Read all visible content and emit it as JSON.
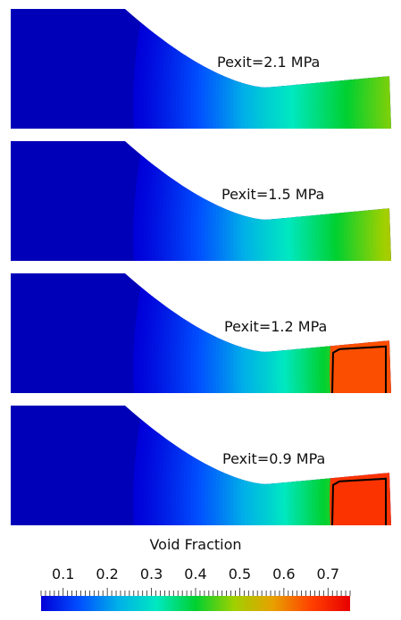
{
  "panels": [
    {
      "label": "Pexit=2.1 MPa",
      "max_void": 0.47,
      "shock": false
    },
    {
      "label": "Pexit=1.5 MPa",
      "max_void": 0.5,
      "shock": false
    },
    {
      "label": "Pexit=1.2 MPa",
      "max_void": 0.65,
      "shock": true
    },
    {
      "label": "Pexit=0.9 MPa",
      "max_void": 0.68,
      "shock": true
    }
  ],
  "legend": {
    "title": "Void Fraction",
    "min": 0.05,
    "max": 0.75,
    "tick_labels": [
      "0.1",
      "0.2",
      "0.3",
      "0.4",
      "0.5",
      "0.6",
      "0.7"
    ],
    "tick_values": [
      0.1,
      0.2,
      0.3,
      0.4,
      0.5,
      0.6,
      0.7
    ],
    "colormap": [
      "#0000d8",
      "#0050ff",
      "#00b0e8",
      "#00e8c0",
      "#00d030",
      "#a0d000",
      "#e8a000",
      "#ff4000",
      "#e80000"
    ]
  },
  "colors": {
    "region_background": "#0000b8",
    "shock_outline": "#000000"
  }
}
